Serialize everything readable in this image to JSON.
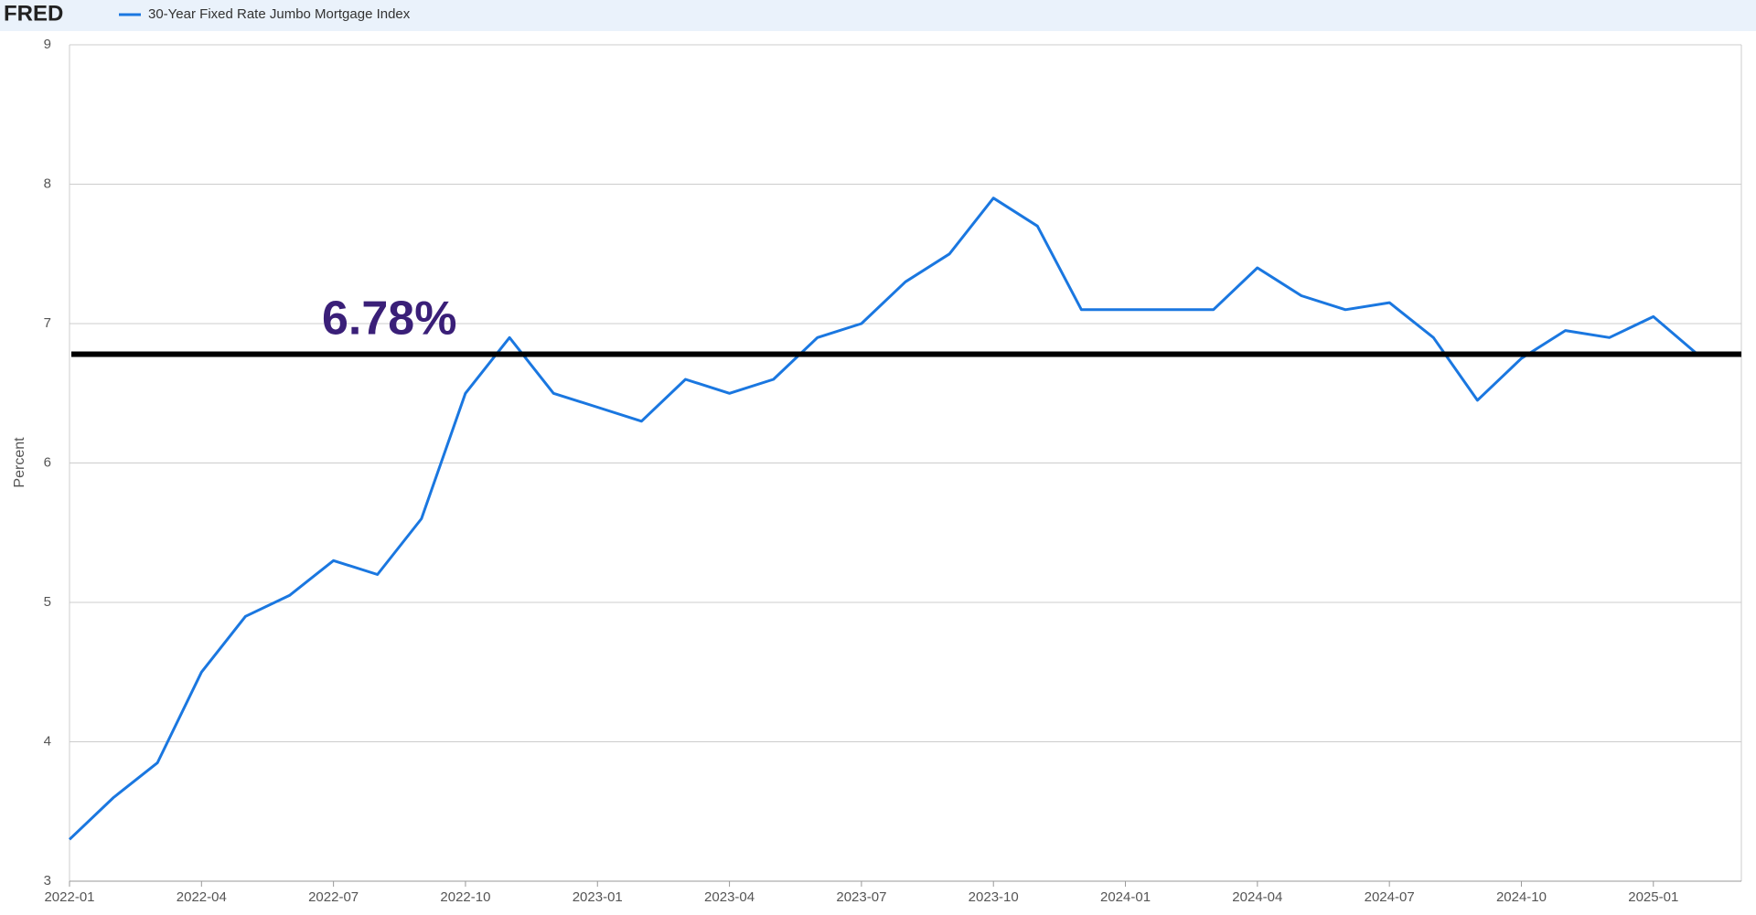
{
  "chart_data": {
    "type": "line",
    "brand": "FRED",
    "y_label": "Percent",
    "x": [
      "2022-01",
      "2022-02",
      "2022-03",
      "2022-04",
      "2022-05",
      "2022-06",
      "2022-07",
      "2022-08",
      "2022-09",
      "2022-10",
      "2022-11",
      "2022-12",
      "2023-01",
      "2023-02",
      "2023-03",
      "2023-04",
      "2023-05",
      "2023-06",
      "2023-07",
      "2023-08",
      "2023-09",
      "2023-10",
      "2023-11",
      "2023-12",
      "2024-01",
      "2024-02",
      "2024-03",
      "2024-04",
      "2024-05",
      "2024-06",
      "2024-07",
      "2024-08",
      "2024-09",
      "2024-10",
      "2024-11",
      "2024-12",
      "2025-01",
      "2025-02"
    ],
    "series": [
      {
        "name": "30-Year Fixed Rate Jumbo Mortgage Index",
        "color": "#1a77e0",
        "values": [
          3.3,
          3.6,
          3.85,
          4.5,
          4.9,
          5.05,
          5.3,
          5.2,
          5.6,
          6.5,
          6.9,
          6.5,
          6.4,
          6.3,
          6.6,
          6.5,
          6.6,
          6.9,
          7.0,
          7.3,
          7.5,
          7.9,
          7.7,
          7.1,
          7.1,
          7.1,
          7.1,
          7.4,
          7.2,
          7.1,
          7.15,
          6.9,
          6.45,
          6.75,
          6.95,
          6.9,
          7.05,
          6.78
        ]
      }
    ],
    "xlim": [
      "2022-01",
      "2025-03"
    ],
    "xticks": [
      "2022-01",
      "2022-04",
      "2022-07",
      "2022-10",
      "2023-01",
      "2023-04",
      "2023-07",
      "2023-10",
      "2024-01",
      "2024-04",
      "2024-07",
      "2024-10",
      "2025-01"
    ],
    "ylim": [
      3,
      9
    ],
    "yticks": [
      3,
      4,
      5,
      6,
      7,
      8,
      9
    ],
    "grid": true,
    "reference_line": {
      "value": 6.78,
      "label": "6.78%"
    }
  }
}
